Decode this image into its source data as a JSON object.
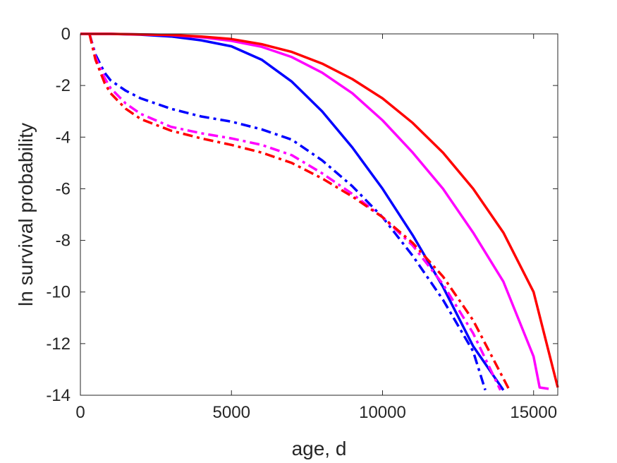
{
  "chart_data": {
    "type": "line",
    "title": "",
    "xlabel": "age, d",
    "ylabel": "ln survival probability",
    "xlim": [
      0,
      15800
    ],
    "ylim": [
      -14,
      0
    ],
    "xticks": [
      0,
      5000,
      10000,
      15000
    ],
    "xtick_labels": [
      "0",
      "5000",
      "10000",
      "15000"
    ],
    "yticks": [
      0,
      -2,
      -4,
      -6,
      -8,
      -10,
      -12,
      -14
    ],
    "ytick_labels": [
      "0",
      "-2",
      "-4",
      "-6",
      "-8",
      "-10",
      "-12",
      "-14"
    ],
    "grid": false,
    "series": [
      {
        "color": "#0000ff",
        "style": "solid",
        "x": [
          0,
          1000,
          2000,
          3000,
          4000,
          5000,
          6000,
          7000,
          8000,
          9000,
          10000,
          11000,
          12000,
          13000,
          14000
        ],
        "y": [
          0,
          0,
          -0.03,
          -0.1,
          -0.25,
          -0.48,
          -1.0,
          -1.85,
          -3.0,
          -4.4,
          -6.0,
          -7.8,
          -9.8,
          -12.1,
          -13.8
        ]
      },
      {
        "color": "#ff00ff",
        "style": "solid",
        "x": [
          0,
          1000,
          2000,
          3000,
          4000,
          5000,
          6000,
          7000,
          8000,
          9000,
          10000,
          11000,
          12000,
          13000,
          14000,
          15000,
          15200,
          15500
        ],
        "y": [
          0,
          0,
          -0.02,
          -0.05,
          -0.13,
          -0.27,
          -0.5,
          -0.9,
          -1.5,
          -2.3,
          -3.35,
          -4.6,
          -6.0,
          -7.7,
          -9.6,
          -12.5,
          -13.7,
          -13.75
        ]
      },
      {
        "color": "#ff0000",
        "style": "solid",
        "x": [
          0,
          1000,
          2000,
          3000,
          4000,
          5000,
          6000,
          7000,
          8000,
          9000,
          10000,
          11000,
          12000,
          13000,
          14000,
          15000,
          15800
        ],
        "y": [
          0,
          0,
          -0.02,
          -0.04,
          -0.1,
          -0.2,
          -0.4,
          -0.7,
          -1.15,
          -1.75,
          -2.5,
          -3.45,
          -4.6,
          -6.0,
          -7.7,
          -10.0,
          -13.7
        ]
      },
      {
        "color": "#0000ff",
        "style": "dashdot",
        "x": [
          300,
          500,
          800,
          1000,
          1500,
          2000,
          3000,
          4000,
          5000,
          6000,
          7000,
          8000,
          9000,
          10000,
          11000,
          12000,
          13000,
          13400
        ],
        "y": [
          0,
          -0.8,
          -1.5,
          -1.8,
          -2.2,
          -2.5,
          -2.9,
          -3.2,
          -3.4,
          -3.7,
          -4.1,
          -4.9,
          -5.9,
          -7.1,
          -8.6,
          -10.3,
          -12.3,
          -13.8
        ]
      },
      {
        "color": "#ff00ff",
        "style": "dashdot",
        "x": [
          300,
          500,
          800,
          1000,
          1500,
          2000,
          3000,
          4000,
          5000,
          6000,
          7000,
          8000,
          9000,
          10000,
          11000,
          12000,
          13000,
          13900
        ],
        "y": [
          0,
          -0.9,
          -1.7,
          -2.1,
          -2.7,
          -3.1,
          -3.6,
          -3.85,
          -4.05,
          -4.3,
          -4.7,
          -5.4,
          -6.2,
          -7.1,
          -8.2,
          -9.7,
          -11.6,
          -13.8
        ]
      },
      {
        "color": "#ff0000",
        "style": "dashdot",
        "x": [
          300,
          500,
          800,
          1000,
          1500,
          2000,
          3000,
          4000,
          5000,
          6000,
          7000,
          8000,
          9000,
          10000,
          11000,
          12000,
          13000,
          14200
        ],
        "y": [
          0,
          -1.0,
          -1.9,
          -2.3,
          -2.9,
          -3.3,
          -3.75,
          -4.05,
          -4.3,
          -4.6,
          -5.0,
          -5.6,
          -6.3,
          -7.1,
          -8.1,
          -9.4,
          -11.1,
          -13.8
        ]
      }
    ]
  }
}
